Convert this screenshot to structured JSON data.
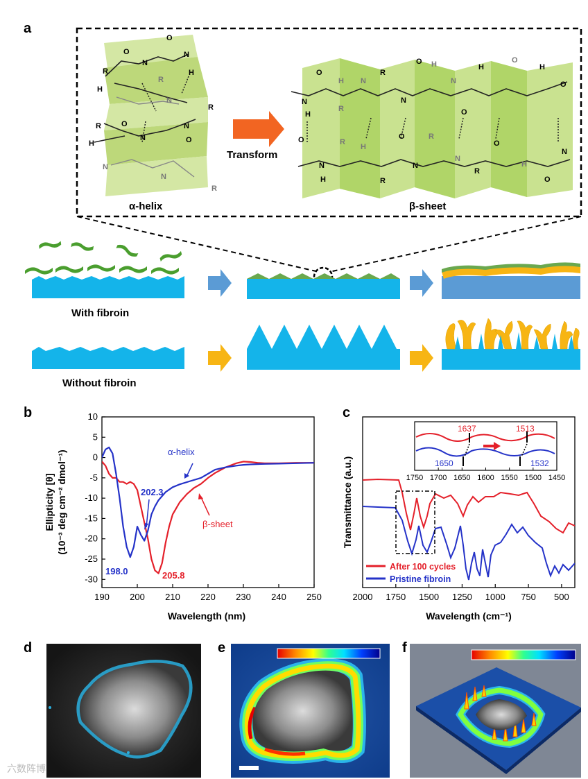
{
  "panels": {
    "a": "a",
    "b": "b",
    "c": "c",
    "d": "d",
    "e": "e",
    "f": "f"
  },
  "panel_a": {
    "alpha_label": "α-helix",
    "beta_label": "β-sheet",
    "transform_label": "Transform",
    "with_label": "With  fibroin",
    "without_label": "Without  fibroin"
  },
  "chem": {
    "R": "R",
    "H": "H",
    "N": "N",
    "O": "O"
  },
  "colors": {
    "red": "#e4202a",
    "blue": "#2432c8",
    "cyan": "#14b4ea",
    "green": "#8dc63f",
    "gold": "#f7b514"
  },
  "watermark": "六数阵博",
  "chart_data": [
    {
      "id": "b",
      "type": "line",
      "xlabel": "Wavelength (nm)",
      "ylabel_1": "Ellipticity [θ]",
      "ylabel_2": "(10⁻³ deg cm⁻² dmol⁻¹)",
      "xlim": [
        190,
        250
      ],
      "ylim": [
        -32,
        10
      ],
      "xticks": [
        190,
        200,
        210,
        220,
        230,
        240,
        250
      ],
      "yticks": [
        10,
        5,
        0,
        -5,
        -10,
        -15,
        -20,
        -25,
        -30
      ],
      "series": [
        {
          "name": "α-helix",
          "color": "#2432c8",
          "x": [
            190,
            191,
            192,
            193,
            194,
            195,
            196,
            197,
            198,
            199,
            200,
            201,
            202,
            203,
            204,
            205,
            206,
            208,
            210,
            212,
            215,
            218,
            220,
            222,
            225,
            228,
            230,
            232,
            235,
            240,
            245,
            250
          ],
          "y": [
            0,
            2,
            2.5,
            1,
            -4,
            -10,
            -17,
            -22,
            -24.5,
            -22,
            -17,
            -19,
            -20.5,
            -18,
            -14,
            -12,
            -10.5,
            -8.5,
            -7.3,
            -6.6,
            -5.8,
            -5,
            -4,
            -3,
            -2.4,
            -2,
            -1.8,
            -1.7,
            -1.6,
            -1.5,
            -1.4,
            -1.3
          ]
        },
        {
          "name": "β-sheet",
          "color": "#e4202a",
          "x": [
            190,
            191,
            192,
            193,
            194,
            195,
            196,
            197,
            198,
            199,
            200,
            201,
            202,
            203,
            204,
            205,
            206,
            207,
            208,
            209,
            210,
            212,
            214,
            216,
            218,
            220,
            222,
            225,
            228,
            230,
            232,
            234,
            236,
            240,
            245,
            250
          ],
          "y": [
            -1,
            -2,
            -4,
            -5,
            -5,
            -6,
            -6,
            -6.5,
            -6,
            -6.5,
            -8,
            -12,
            -16,
            -20,
            -25,
            -27.8,
            -28.5,
            -26,
            -21,
            -17,
            -14,
            -11,
            -9,
            -7.5,
            -6.5,
            -5,
            -3.8,
            -2.4,
            -1.4,
            -1,
            -1.1,
            -1.3,
            -1.4,
            -1.4,
            -1.3,
            -1.3
          ]
        }
      ],
      "annotations": {
        "helix": "α-helix",
        "sheet": "β-sheet",
        "p1": "202.3",
        "p2": "198.0",
        "p3": "205.8"
      }
    },
    {
      "id": "c",
      "type": "line",
      "xlabel": "Wavelength (cm⁻¹)",
      "ylabel": "Transmittance  (a.u.)",
      "xlim": [
        2000,
        400
      ],
      "xticks": [
        2000,
        1750,
        1500,
        1250,
        1000,
        750,
        500
      ],
      "series": [
        {
          "name": "After 100 cycles",
          "color": "#e4202a"
        },
        {
          "name": "Pristine fibroin",
          "color": "#2432c8"
        }
      ],
      "inset": {
        "xlim": [
          1750,
          1450
        ],
        "xticks": [
          1750,
          1700,
          1650,
          1600,
          1550,
          1500,
          1450
        ],
        "labels": {
          "r1": "1637",
          "r2": "1513",
          "b1": "1650",
          "b2": "1532"
        }
      }
    },
    {
      "id": "e",
      "type": "heatmap",
      "colorbar": [
        "#e60000",
        "#ff8c00",
        "#ffff00",
        "#00ff80",
        "#00e0ff",
        "#0040ff",
        "#00008b"
      ]
    }
  ]
}
